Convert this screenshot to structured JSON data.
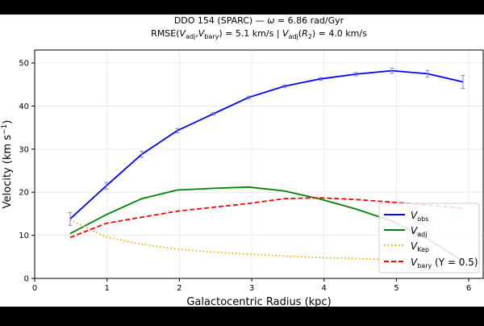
{
  "figure": {
    "title_line1": "DDO 154 (SPARC)  —  ω = 6.86 rad/Gyr",
    "title_line2": "RMSE(V_adj, V_bary) = 5.1 km/s  |  V_adj(R₂) = 4.0 km/s"
  },
  "colors": {
    "obs": "#0000ff",
    "adj": "#008000",
    "kep": "#ffa500",
    "bary": "#ff0000",
    "errorbar": "#8080ff"
  },
  "chart_data": {
    "type": "line",
    "xlabel": "Galactocentric Radius (kpc)",
    "ylabel": "Velocity (km s⁻¹)",
    "xlim": [
      0,
      6.2
    ],
    "ylim": [
      0,
      53
    ],
    "xticks": [
      0,
      1,
      2,
      3,
      4,
      5,
      6
    ],
    "yticks": [
      0,
      10,
      20,
      30,
      40,
      50
    ],
    "grid": true,
    "legend_position": "lower-right",
    "series": [
      {
        "key": "obs",
        "name": "V_obs",
        "style": "solid",
        "x": [
          0.49,
          0.99,
          1.48,
          1.97,
          2.47,
          2.96,
          3.45,
          3.95,
          4.44,
          4.94,
          5.43,
          5.92
        ],
        "y": [
          13.8,
          21.5,
          28.8,
          34.3,
          38.2,
          42.0,
          44.6,
          46.3,
          47.4,
          48.2,
          47.5,
          45.6
        ],
        "err": [
          1.5,
          0.8,
          0.7,
          0.5,
          0.3,
          0.3,
          0.3,
          0.3,
          0.4,
          0.6,
          0.8,
          1.5
        ]
      },
      {
        "key": "adj",
        "name": "V_adj",
        "style": "solid",
        "x": [
          0.49,
          0.99,
          1.48,
          1.97,
          2.47,
          2.96,
          3.45,
          3.95,
          4.44,
          4.94,
          5.43,
          5.92
        ],
        "y": [
          10.4,
          14.8,
          18.5,
          20.5,
          20.9,
          21.2,
          20.3,
          18.4,
          16.1,
          13.3,
          9.2,
          4.0
        ]
      },
      {
        "key": "kep",
        "name": "V_Kep",
        "style": "dotted",
        "x": [
          0.49,
          0.99,
          1.48,
          1.97,
          2.47,
          2.96,
          3.45,
          3.95,
          4.44,
          4.94,
          5.43,
          5.92
        ],
        "y": [
          13.6,
          9.6,
          7.9,
          6.8,
          6.1,
          5.6,
          5.2,
          4.8,
          4.6,
          4.3,
          4.1,
          3.9
        ]
      },
      {
        "key": "bary",
        "name": "V_bary (Υ = 0.5)",
        "style": "dashed",
        "x": [
          0.49,
          0.99,
          1.48,
          1.97,
          2.47,
          2.96,
          3.45,
          3.95,
          4.44,
          4.94,
          5.43,
          5.92
        ],
        "y": [
          9.5,
          12.8,
          14.2,
          15.6,
          16.5,
          17.4,
          18.5,
          18.7,
          18.3,
          17.7,
          17.0,
          16.3
        ]
      }
    ]
  }
}
